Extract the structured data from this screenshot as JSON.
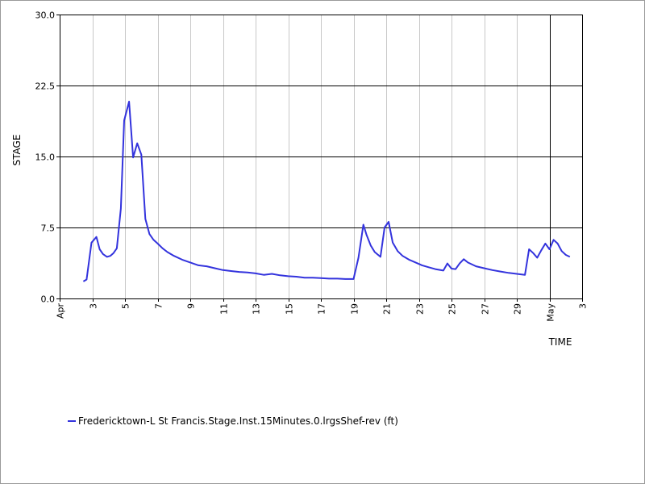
{
  "chart_data": {
    "type": "line",
    "xlabel": "TIME",
    "ylabel": "STAGE",
    "ylim": [
      0,
      30
    ],
    "y_ticks": [
      "0.0",
      "7.5",
      "15.0",
      "22.5",
      "30.0"
    ],
    "x_ticks": [
      {
        "day": 1,
        "label": "Apr"
      },
      {
        "day": 3,
        "label": "3"
      },
      {
        "day": 5,
        "label": "5"
      },
      {
        "day": 7,
        "label": "7"
      },
      {
        "day": 9,
        "label": "9"
      },
      {
        "day": 11,
        "label": "11"
      },
      {
        "day": 13,
        "label": "13"
      },
      {
        "day": 15,
        "label": "15"
      },
      {
        "day": 17,
        "label": "17"
      },
      {
        "day": 19,
        "label": "19"
      },
      {
        "day": 21,
        "label": "21"
      },
      {
        "day": 23,
        "label": "23"
      },
      {
        "day": 25,
        "label": "25"
      },
      {
        "day": 27,
        "label": "27"
      },
      {
        "day": 29,
        "label": "29"
      },
      {
        "day": 31,
        "label": "May"
      },
      {
        "day": 33,
        "label": "3"
      }
    ],
    "xlim": [
      1,
      33
    ],
    "current_marker_day": 31,
    "grid": true,
    "legend_position": "bottom-left",
    "series": [
      {
        "name": "Fredericktown-L St Francis.Stage.Inst.15Minutes.0.lrgsShef-rev (ft)",
        "color": "#3333dd",
        "points": [
          [
            2.45,
            1.8
          ],
          [
            2.65,
            2.0
          ],
          [
            2.95,
            5.9
          ],
          [
            3.25,
            6.5
          ],
          [
            3.45,
            5.2
          ],
          [
            3.65,
            4.7
          ],
          [
            3.9,
            4.4
          ],
          [
            4.1,
            4.5
          ],
          [
            4.3,
            4.8
          ],
          [
            4.5,
            5.3
          ],
          [
            4.75,
            9.5
          ],
          [
            4.95,
            18.8
          ],
          [
            5.25,
            20.8
          ],
          [
            5.5,
            14.9
          ],
          [
            5.75,
            16.4
          ],
          [
            6.0,
            15.2
          ],
          [
            6.25,
            8.4
          ],
          [
            6.5,
            6.8
          ],
          [
            6.75,
            6.2
          ],
          [
            7.0,
            5.8
          ],
          [
            7.3,
            5.3
          ],
          [
            7.6,
            4.9
          ],
          [
            8.0,
            4.5
          ],
          [
            8.5,
            4.1
          ],
          [
            9.0,
            3.8
          ],
          [
            9.5,
            3.5
          ],
          [
            10.0,
            3.4
          ],
          [
            10.5,
            3.2
          ],
          [
            11.0,
            3.0
          ],
          [
            11.5,
            2.9
          ],
          [
            12.0,
            2.8
          ],
          [
            12.5,
            2.75
          ],
          [
            13.0,
            2.65
          ],
          [
            13.5,
            2.5
          ],
          [
            14.0,
            2.6
          ],
          [
            14.5,
            2.45
          ],
          [
            15.0,
            2.35
          ],
          [
            15.5,
            2.3
          ],
          [
            16.0,
            2.2
          ],
          [
            16.5,
            2.2
          ],
          [
            17.0,
            2.15
          ],
          [
            17.5,
            2.1
          ],
          [
            18.0,
            2.1
          ],
          [
            18.5,
            2.05
          ],
          [
            19.0,
            2.05
          ],
          [
            19.3,
            4.3
          ],
          [
            19.6,
            7.8
          ],
          [
            19.8,
            6.7
          ],
          [
            20.05,
            5.6
          ],
          [
            20.3,
            4.9
          ],
          [
            20.65,
            4.4
          ],
          [
            20.9,
            7.5
          ],
          [
            21.15,
            8.1
          ],
          [
            21.4,
            5.9
          ],
          [
            21.7,
            5.0
          ],
          [
            22.0,
            4.5
          ],
          [
            22.4,
            4.1
          ],
          [
            22.8,
            3.8
          ],
          [
            23.2,
            3.5
          ],
          [
            23.6,
            3.3
          ],
          [
            24.0,
            3.1
          ],
          [
            24.5,
            2.95
          ],
          [
            24.75,
            3.7
          ],
          [
            25.0,
            3.15
          ],
          [
            25.25,
            3.1
          ],
          [
            25.5,
            3.7
          ],
          [
            25.75,
            4.15
          ],
          [
            26.0,
            3.8
          ],
          [
            26.5,
            3.4
          ],
          [
            27.0,
            3.2
          ],
          [
            27.5,
            3.0
          ],
          [
            28.0,
            2.85
          ],
          [
            28.5,
            2.7
          ],
          [
            29.0,
            2.6
          ],
          [
            29.5,
            2.5
          ],
          [
            29.75,
            5.2
          ],
          [
            30.0,
            4.8
          ],
          [
            30.25,
            4.3
          ],
          [
            30.5,
            5.1
          ],
          [
            30.75,
            5.8
          ],
          [
            31.0,
            5.2
          ],
          [
            31.25,
            6.2
          ],
          [
            31.5,
            5.8
          ],
          [
            31.75,
            5.0
          ],
          [
            32.0,
            4.6
          ],
          [
            32.25,
            4.4
          ]
        ]
      }
    ]
  }
}
